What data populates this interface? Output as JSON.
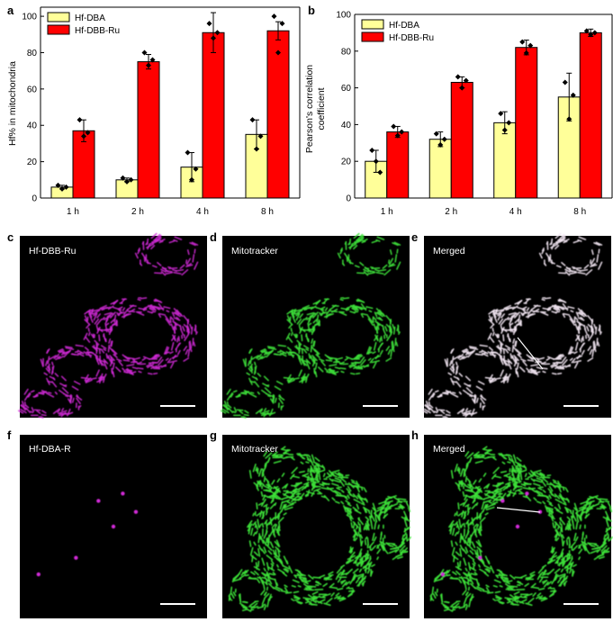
{
  "figure": {
    "panels": [
      "a",
      "b",
      "c",
      "d",
      "e",
      "f",
      "g",
      "h"
    ],
    "colors": {
      "bar1": "#ffff99",
      "bar2": "#ff0000",
      "magenta": "#d02ad6",
      "green": "#3ee23a",
      "white_overlay": "#f2e6f2"
    }
  },
  "chart_data": [
    {
      "panel": "a",
      "type": "bar",
      "categories": [
        "1 h",
        "2 h",
        "4 h",
        "8 h"
      ],
      "ylabel": "Hf% in mitochondria",
      "xlabel": "",
      "ylim": [
        0,
        105
      ],
      "yticks": [
        0,
        20,
        40,
        60,
        80,
        100
      ],
      "legend": "top-left",
      "series": [
        {
          "name": "Hf-DBA",
          "color": "#ffff99",
          "values": [
            6,
            10,
            17,
            35
          ],
          "errors": [
            1,
            1,
            8,
            8
          ],
          "points": [
            [
              7,
              5,
              6
            ],
            [
              11,
              9,
              10
            ],
            [
              25,
              10,
              16
            ],
            [
              43,
              27,
              34
            ]
          ]
        },
        {
          "name": "Hf-DBB-Ru",
          "color": "#ff0000",
          "values": [
            37,
            75,
            91,
            92
          ],
          "errors": [
            6,
            4,
            11,
            5
          ],
          "points": [
            [
              43,
              34,
              36
            ],
            [
              80,
              73,
              76
            ],
            [
              96,
              88,
              91
            ],
            [
              100,
              80,
              96
            ]
          ]
        }
      ]
    },
    {
      "panel": "b",
      "type": "bar",
      "categories": [
        "1 h",
        "2 h",
        "4 h",
        "8 h"
      ],
      "ylabel": "Pearson's correlation coefficient",
      "xlabel": "",
      "ylim": [
        0,
        100
      ],
      "yticks": [
        0,
        20,
        40,
        60,
        80,
        100
      ],
      "legend": "top-left",
      "series": [
        {
          "name": "Hf-DBA",
          "color": "#ffff99",
          "values": [
            20,
            32,
            41,
            55
          ],
          "errors": [
            6,
            4,
            6,
            13
          ],
          "points": [
            [
              26,
              20,
              14
            ],
            [
              35,
              29,
              32
            ],
            [
              46,
              37,
              41
            ],
            [
              63,
              43,
              56
            ]
          ]
        },
        {
          "name": "Hf-DBB-Ru",
          "color": "#ff0000",
          "values": [
            36,
            63,
            82,
            90
          ],
          "errors": [
            3,
            3,
            4,
            2
          ],
          "points": [
            [
              39,
              34,
              36
            ],
            [
              66,
              60,
              64
            ],
            [
              85,
              79,
              83
            ],
            [
              91,
              89,
              90
            ]
          ]
        }
      ]
    }
  ],
  "images": [
    {
      "panel": "c",
      "label": "Hf-DBB-Ru",
      "channel": "magenta"
    },
    {
      "panel": "d",
      "label": "Mitotracker",
      "channel": "green"
    },
    {
      "panel": "e",
      "label": "Merged",
      "channel": "merged"
    },
    {
      "panel": "f",
      "label": "Hf-DBA-R",
      "channel": "magenta-dots"
    },
    {
      "panel": "g",
      "label": "Mitotracker",
      "channel": "green-dense"
    },
    {
      "panel": "h",
      "label": "Merged",
      "channel": "merged-dense"
    }
  ]
}
